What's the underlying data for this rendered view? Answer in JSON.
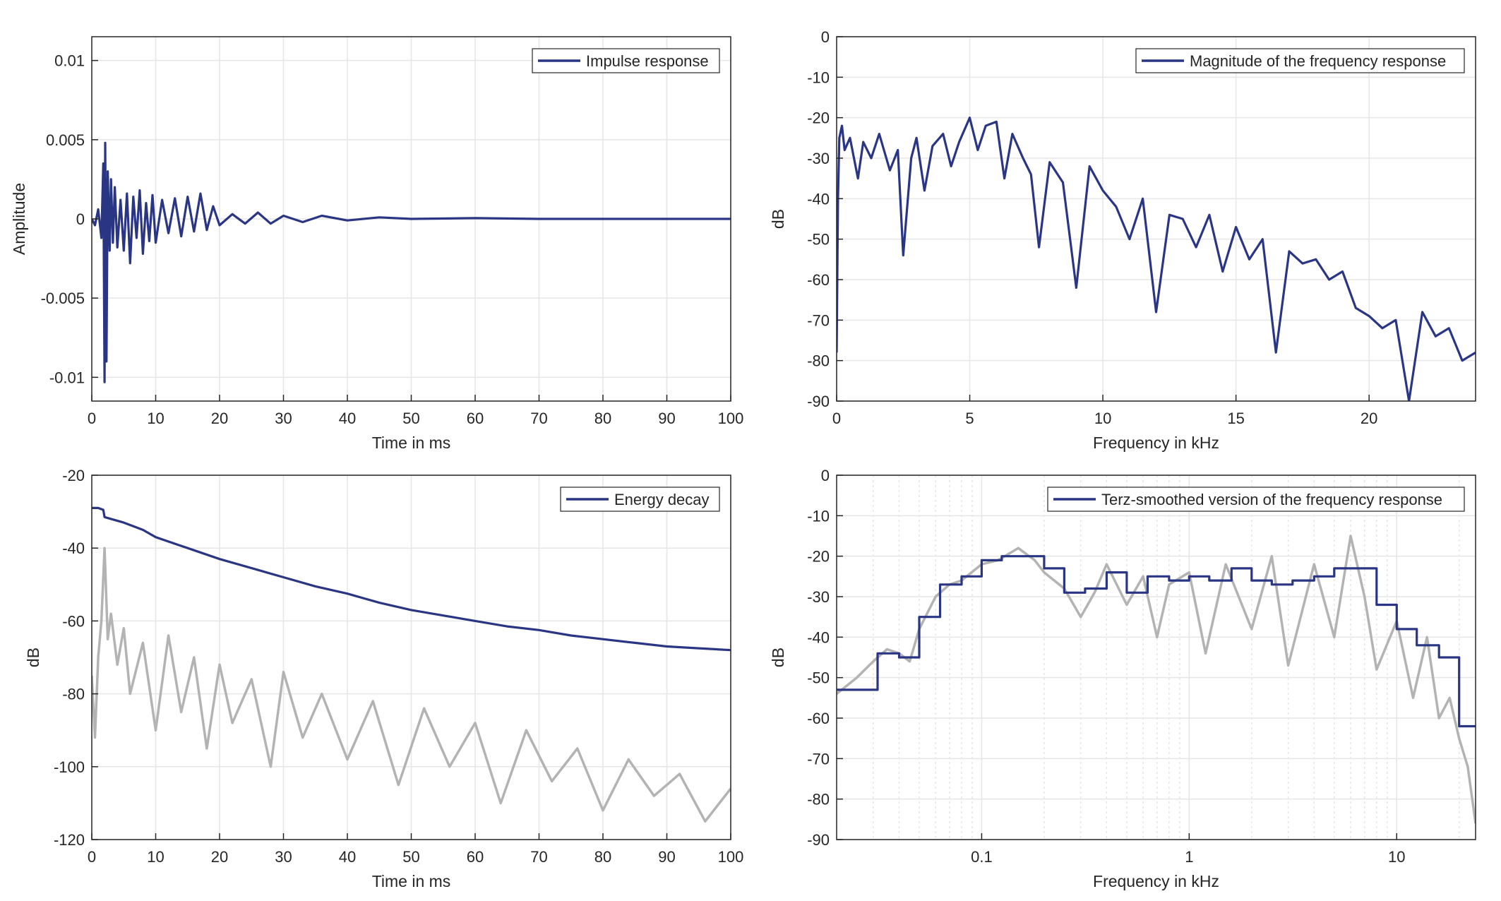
{
  "colors": {
    "primary": "#2a3584",
    "secondary": "#b3b3b3",
    "grid": "#e6e6e6",
    "axis": "#262626"
  },
  "chart_data": [
    {
      "type": "line",
      "xlabel": "Time in ms",
      "ylabel": "Amplitude",
      "xlim": [
        0,
        100
      ],
      "ylim": [
        -0.0115,
        0.0115
      ],
      "xscale": "linear",
      "grid": true,
      "legend_position": "top-right",
      "xticks": [
        0,
        10,
        20,
        30,
        40,
        50,
        60,
        70,
        80,
        90,
        100
      ],
      "yticks": [
        -0.01,
        -0.005,
        0,
        0.005,
        0.01
      ],
      "xtick_labels": [
        "0",
        "10",
        "20",
        "30",
        "40",
        "50",
        "60",
        "70",
        "80",
        "90",
        "100"
      ],
      "ytick_labels": [
        "-0.01",
        "-0.005",
        "0",
        "0.005",
        "0.01"
      ],
      "series": [
        {
          "name": "Impulse response",
          "color": "#2a3584",
          "x": [
            0,
            0.5,
            1,
            1.5,
            1.8,
            2,
            2.1,
            2.3,
            2.5,
            2.8,
            3,
            3.3,
            3.6,
            4,
            4.5,
            5,
            5.5,
            6,
            6.5,
            7,
            7.5,
            8,
            8.5,
            9,
            9.5,
            10,
            11,
            12,
            13,
            14,
            15,
            16,
            17,
            18,
            19,
            20,
            22,
            24,
            26,
            28,
            30,
            33,
            36,
            40,
            45,
            50,
            60,
            70,
            80,
            90,
            100
          ],
          "y": [
            0,
            -0.0004,
            0.0006,
            -0.0012,
            0.0035,
            -0.0103,
            0.0048,
            -0.009,
            0.003,
            -0.002,
            0.0025,
            -0.0015,
            0.002,
            -0.0018,
            0.0012,
            -0.002,
            0.0016,
            -0.0028,
            0.0014,
            -0.0012,
            0.0018,
            -0.0022,
            0.001,
            -0.0014,
            0.0015,
            -0.0015,
            0.0012,
            -0.0009,
            0.0013,
            -0.0011,
            0.0014,
            -0.0008,
            0.0016,
            -0.0007,
            0.0008,
            -0.0004,
            0.0003,
            -0.0003,
            0.0004,
            -0.0003,
            0.0002,
            -0.0002,
            0.0002,
            -0.0001,
            0.0001,
            0,
            5e-05,
            0,
            0,
            0,
            0
          ]
        }
      ]
    },
    {
      "type": "line",
      "xlabel": "Frequency in kHz",
      "ylabel": "dB",
      "xlim": [
        0,
        24
      ],
      "ylim": [
        -90,
        0
      ],
      "xscale": "linear",
      "grid": true,
      "legend_position": "top-right",
      "xticks": [
        0,
        5,
        10,
        15,
        20
      ],
      "yticks": [
        -90,
        -80,
        -70,
        -60,
        -50,
        -40,
        -30,
        -20,
        -10,
        0
      ],
      "xtick_labels": [
        "0",
        "5",
        "10",
        "15",
        "20"
      ],
      "ytick_labels": [
        "-90",
        "-80",
        "-70",
        "-60",
        "-50",
        "-40",
        "-30",
        "-20",
        "-10",
        "0"
      ],
      "series": [
        {
          "name": "Magnitude of the frequency response",
          "color": "#2a3584",
          "x": [
            0,
            0.05,
            0.1,
            0.2,
            0.3,
            0.5,
            0.8,
            1,
            1.3,
            1.6,
            2,
            2.3,
            2.5,
            2.8,
            3,
            3.3,
            3.6,
            4,
            4.3,
            4.6,
            5,
            5.3,
            5.6,
            6,
            6.3,
            6.6,
            7,
            7.3,
            7.6,
            8,
            8.5,
            9,
            9.5,
            10,
            10.5,
            11,
            11.5,
            12,
            12.5,
            13,
            13.5,
            14,
            14.5,
            15,
            15.5,
            16,
            16.5,
            17,
            17.5,
            18,
            18.5,
            19,
            19.5,
            20,
            20.5,
            21,
            21.5,
            22,
            22.5,
            23,
            23.5,
            24
          ],
          "y": [
            -78,
            -40,
            -25,
            -22,
            -28,
            -25,
            -35,
            -26,
            -30,
            -24,
            -33,
            -28,
            -54,
            -30,
            -25,
            -38,
            -27,
            -24,
            -32,
            -26,
            -20,
            -28,
            -22,
            -21,
            -35,
            -24,
            -30,
            -34,
            -52,
            -31,
            -36,
            -62,
            -32,
            -38,
            -42,
            -50,
            -40,
            -68,
            -44,
            -45,
            -52,
            -44,
            -58,
            -47,
            -55,
            -50,
            -78,
            -53,
            -56,
            -55,
            -60,
            -58,
            -67,
            -69,
            -72,
            -70,
            -90,
            -68,
            -74,
            -72,
            -80,
            -78
          ]
        }
      ]
    },
    {
      "type": "line",
      "xlabel": "Time in ms",
      "ylabel": "dB",
      "xlim": [
        0,
        100
      ],
      "ylim": [
        -120,
        -20
      ],
      "xscale": "linear",
      "grid": true,
      "legend_position": "top-right",
      "xticks": [
        0,
        10,
        20,
        30,
        40,
        50,
        60,
        70,
        80,
        90,
        100
      ],
      "yticks": [
        -120,
        -100,
        -80,
        -60,
        -40,
        -20
      ],
      "xtick_labels": [
        "0",
        "10",
        "20",
        "30",
        "40",
        "50",
        "60",
        "70",
        "80",
        "90",
        "100"
      ],
      "ytick_labels": [
        "-120",
        "-100",
        "-80",
        "-60",
        "-40",
        "-20"
      ],
      "series": [
        {
          "name": "Energy decay",
          "color": "#2a3584",
          "x": [
            0,
            1,
            1.8,
            2,
            3,
            5,
            8,
            10,
            15,
            20,
            25,
            30,
            35,
            40,
            45,
            50,
            55,
            60,
            65,
            70,
            75,
            80,
            85,
            90,
            95,
            100
          ],
          "y": [
            -29,
            -29,
            -29.5,
            -31.5,
            -32,
            -33,
            -35,
            -37,
            -40,
            -43,
            -45.5,
            -48,
            -50.5,
            -52.5,
            -55,
            -57,
            -58.5,
            -60,
            -61.5,
            -62.5,
            -64,
            -65,
            -66,
            -67,
            -67.5,
            -68
          ]
        },
        {
          "color": "#b3b3b3",
          "x": [
            0,
            0.5,
            1,
            1.5,
            2,
            2.5,
            3,
            4,
            5,
            6,
            8,
            10,
            12,
            14,
            16,
            18,
            20,
            22,
            25,
            28,
            30,
            33,
            36,
            40,
            44,
            48,
            52,
            56,
            60,
            64,
            68,
            72,
            76,
            80,
            84,
            88,
            92,
            96,
            100
          ],
          "y": [
            -75,
            -92,
            -70,
            -60,
            -40,
            -65,
            -58,
            -72,
            -62,
            -80,
            -66,
            -90,
            -64,
            -85,
            -70,
            -95,
            -72,
            -88,
            -76,
            -100,
            -74,
            -92,
            -80,
            -98,
            -82,
            -105,
            -84,
            -100,
            -88,
            -110,
            -90,
            -104,
            -95,
            -112,
            -98,
            -108,
            -102,
            -115,
            -106
          ]
        }
      ]
    },
    {
      "type": "line",
      "xlabel": "Frequency in kHz",
      "ylabel": "dB",
      "xlim": [
        0.02,
        24
      ],
      "ylim": [
        -90,
        0
      ],
      "xscale": "log",
      "grid": true,
      "legend_position": "top-right",
      "xticks": [
        0.1,
        1,
        10
      ],
      "yticks": [
        -90,
        -80,
        -70,
        -60,
        -50,
        -40,
        -30,
        -20,
        -10,
        0
      ],
      "xtick_labels": [
        "0.1",
        "1",
        "10"
      ],
      "ytick_labels": [
        "-90",
        "-80",
        "-70",
        "-60",
        "-50",
        "-40",
        "-30",
        "-20",
        "-10",
        "0"
      ],
      "series": [
        {
          "color": "#b3b3b3",
          "x": [
            0.02,
            0.025,
            0.03,
            0.035,
            0.04,
            0.045,
            0.05,
            0.06,
            0.07,
            0.08,
            0.1,
            0.12,
            0.15,
            0.18,
            0.2,
            0.25,
            0.3,
            0.35,
            0.4,
            0.5,
            0.6,
            0.7,
            0.8,
            1,
            1.2,
            1.5,
            2,
            2.5,
            3,
            4,
            5,
            6,
            7,
            8,
            10,
            12,
            14,
            16,
            18,
            20,
            22,
            24
          ],
          "y": [
            -54,
            -50,
            -46,
            -43,
            -44,
            -46,
            -38,
            -30,
            -27,
            -26,
            -22,
            -21,
            -18,
            -21,
            -24,
            -28,
            -35,
            -29,
            -22,
            -32,
            -25,
            -40,
            -27,
            -24,
            -44,
            -22,
            -38,
            -20,
            -47,
            -22,
            -40,
            -15,
            -30,
            -48,
            -36,
            -55,
            -40,
            -60,
            -55,
            -65,
            -72,
            -86
          ]
        },
        {
          "name": "Terz-smoothed version of the frequency response",
          "color": "#2a3584",
          "x": [
            0.02,
            0.0315,
            0.0315,
            0.04,
            0.04,
            0.05,
            0.05,
            0.063,
            0.063,
            0.08,
            0.08,
            0.1,
            0.1,
            0.125,
            0.125,
            0.16,
            0.16,
            0.2,
            0.2,
            0.25,
            0.25,
            0.315,
            0.315,
            0.4,
            0.4,
            0.5,
            0.5,
            0.63,
            0.63,
            0.8,
            0.8,
            1,
            1,
            1.25,
            1.25,
            1.6,
            1.6,
            2,
            2,
            2.5,
            2.5,
            3.15,
            3.15,
            4,
            4,
            5,
            5,
            6.3,
            6.3,
            8,
            8,
            10,
            10,
            12.5,
            12.5,
            16,
            16,
            20,
            20,
            24
          ],
          "y": [
            -53,
            -53,
            -44,
            -44,
            -45,
            -45,
            -35,
            -35,
            -27,
            -27,
            -25,
            -25,
            -21,
            -21,
            -20,
            -20,
            -20,
            -20,
            -23,
            -23,
            -29,
            -29,
            -28,
            -28,
            -24,
            -24,
            -29,
            -29,
            -25,
            -25,
            -26,
            -26,
            -25,
            -25,
            -26,
            -26,
            -23,
            -23,
            -26,
            -26,
            -27,
            -27,
            -26,
            -26,
            -25,
            -25,
            -23,
            -23,
            -23,
            -23,
            -32,
            -32,
            -38,
            -38,
            -42,
            -42,
            -45,
            -45,
            -62,
            -62
          ]
        }
      ]
    }
  ]
}
